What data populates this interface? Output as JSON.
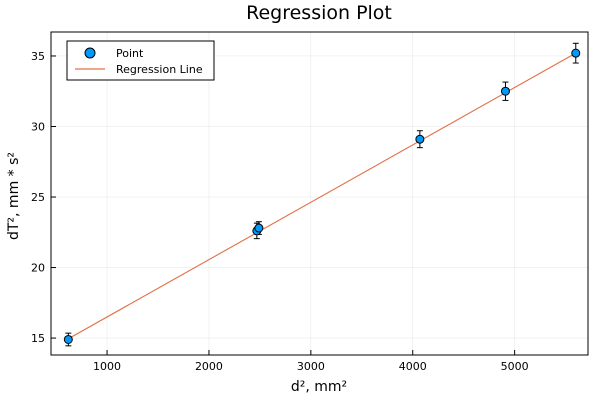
{
  "chart_data": {
    "type": "scatter",
    "title": "Regression Plot",
    "xlabel": "d², mm²",
    "ylabel": "dT², mm * s²",
    "xlim": [
      450,
      5720
    ],
    "ylim": [
      13.8,
      36.7
    ],
    "xticks": [
      1000,
      2000,
      3000,
      4000,
      5000
    ],
    "yticks": [
      15,
      20,
      25,
      30,
      35
    ],
    "grid": true,
    "legend_position": "top-left",
    "series": [
      {
        "name": "Point",
        "kind": "scatter-with-errorbars",
        "color": "#009AFA",
        "points": [
          {
            "x": 620,
            "y": 14.9,
            "err": 0.45
          },
          {
            "x": 2470,
            "y": 22.6,
            "err": 0.55
          },
          {
            "x": 2490,
            "y": 22.8,
            "err": 0.45
          },
          {
            "x": 4070,
            "y": 29.1,
            "err": 0.6
          },
          {
            "x": 4910,
            "y": 32.5,
            "err": 0.65
          },
          {
            "x": 5600,
            "y": 35.2,
            "err": 0.7
          }
        ]
      },
      {
        "name": "Regression Line",
        "kind": "line",
        "color": "#E26F46",
        "x": [
          620,
          5600
        ],
        "y": [
          14.95,
          35.2
        ]
      }
    ]
  }
}
